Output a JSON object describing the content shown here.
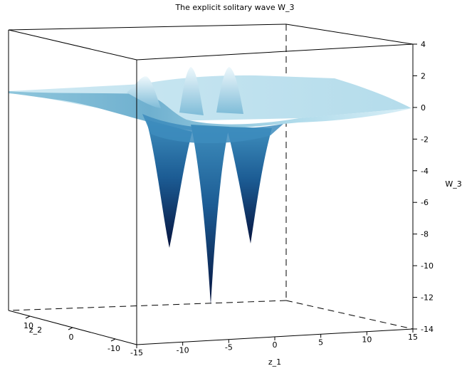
{
  "chart_data": {
    "type": "surface",
    "title": "The explicit solitary wave W_3",
    "xlabel": "z_1",
    "ylabel": "z_2",
    "zlabel": "W_3",
    "xlim": [
      -15,
      15
    ],
    "ylim": [
      -15,
      15
    ],
    "zlim": [
      -14,
      4
    ],
    "x_ticks": [
      -15,
      -10,
      -5,
      0,
      5,
      10,
      15
    ],
    "y_ticks": [
      10,
      0,
      -10
    ],
    "z_ticks": [
      4,
      2,
      0,
      -2,
      -4,
      -6,
      -8,
      -10,
      -12,
      -14
    ],
    "baseline": 0,
    "features": [
      {
        "kind": "trough",
        "z1": -12,
        "z2": -1,
        "min": -8.7
      },
      {
        "kind": "trough",
        "z1": -7,
        "z2": -1,
        "min": -12.5
      },
      {
        "kind": "trough",
        "z1": -2,
        "z2": -1,
        "min": -8.5
      },
      {
        "kind": "crest",
        "z1": -13,
        "z2": 6,
        "max": 2.2
      },
      {
        "kind": "crest",
        "z1": -9,
        "z2": 6,
        "max": 3.0
      },
      {
        "kind": "crest",
        "z1": -5,
        "z2": 6,
        "max": 3.0
      }
    ],
    "colormap": [
      "#06143f",
      "#1f5f97",
      "#4ca0c8",
      "#9fd2e6",
      "#e9f6fb"
    ],
    "grid": false
  }
}
